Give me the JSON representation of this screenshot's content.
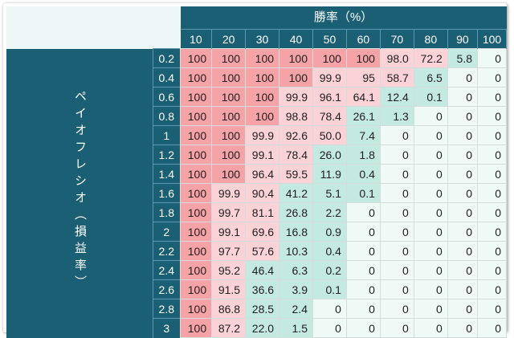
{
  "chart_data": {
    "type": "table",
    "title": "勝率（%）",
    "row_axis_label": "ペイオフレシオ（損益率）",
    "columns": [
      "10",
      "20",
      "30",
      "40",
      "50",
      "60",
      "70",
      "80",
      "90",
      "100"
    ],
    "rows": [
      "0.2",
      "0.4",
      "0.6",
      "0.8",
      "1",
      "1.2",
      "1.4",
      "1.6",
      "1.8",
      "2",
      "2.2",
      "2.4",
      "2.6",
      "2.8",
      "3"
    ],
    "values": [
      [
        "100",
        "100",
        "100",
        "100",
        "100",
        "100",
        "98.0",
        "72.2",
        "5.8",
        "0"
      ],
      [
        "100",
        "100",
        "100",
        "100",
        "99.9",
        "95",
        "58.7",
        "6.5",
        "0",
        "0"
      ],
      [
        "100",
        "100",
        "100",
        "99.9",
        "96.1",
        "64.1",
        "12.4",
        "0.1",
        "0",
        "0"
      ],
      [
        "100",
        "100",
        "100",
        "98.8",
        "78.4",
        "26.1",
        "1.3",
        "0",
        "0",
        "0"
      ],
      [
        "100",
        "100",
        "99.9",
        "92.6",
        "50.0",
        "7.4",
        "0",
        "0",
        "0",
        "0"
      ],
      [
        "100",
        "100",
        "99.1",
        "78.4",
        "26.0",
        "1.8",
        "0",
        "0",
        "0",
        "0"
      ],
      [
        "100",
        "100",
        "96.4",
        "59.5",
        "11.9",
        "0.4",
        "0",
        "0",
        "0",
        "0"
      ],
      [
        "100",
        "99.9",
        "90.4",
        "41.2",
        "5.1",
        "0.1",
        "0",
        "0",
        "0",
        "0"
      ],
      [
        "100",
        "99.7",
        "81.1",
        "26.8",
        "2.2",
        "0",
        "0",
        "0",
        "0",
        "0"
      ],
      [
        "100",
        "99.1",
        "69.6",
        "16.8",
        "0.9",
        "0",
        "0",
        "0",
        "0",
        "0"
      ],
      [
        "100",
        "97.7",
        "57.6",
        "10.3",
        "0.4",
        "0",
        "0",
        "0",
        "0",
        "0"
      ],
      [
        "100",
        "95.2",
        "46.4",
        "6.3",
        "0.2",
        "0",
        "0",
        "0",
        "0",
        "0"
      ],
      [
        "100",
        "91.5",
        "36.6",
        "3.9",
        "0.1",
        "0",
        "0",
        "0",
        "0",
        "0"
      ],
      [
        "100",
        "86.8",
        "28.5",
        "2.4",
        "0",
        "0",
        "0",
        "0",
        "0",
        "0"
      ],
      [
        "100",
        "87.2",
        "22.0",
        "1.5",
        "0",
        "0",
        "0",
        "0",
        "0",
        "0"
      ]
    ],
    "colors": {
      "header": "#1a5f74",
      "high": "#f6a3a8",
      "mid": "#fbd3d7",
      "low": "#c4e9e1",
      "zero": "#effaf7"
    }
  }
}
